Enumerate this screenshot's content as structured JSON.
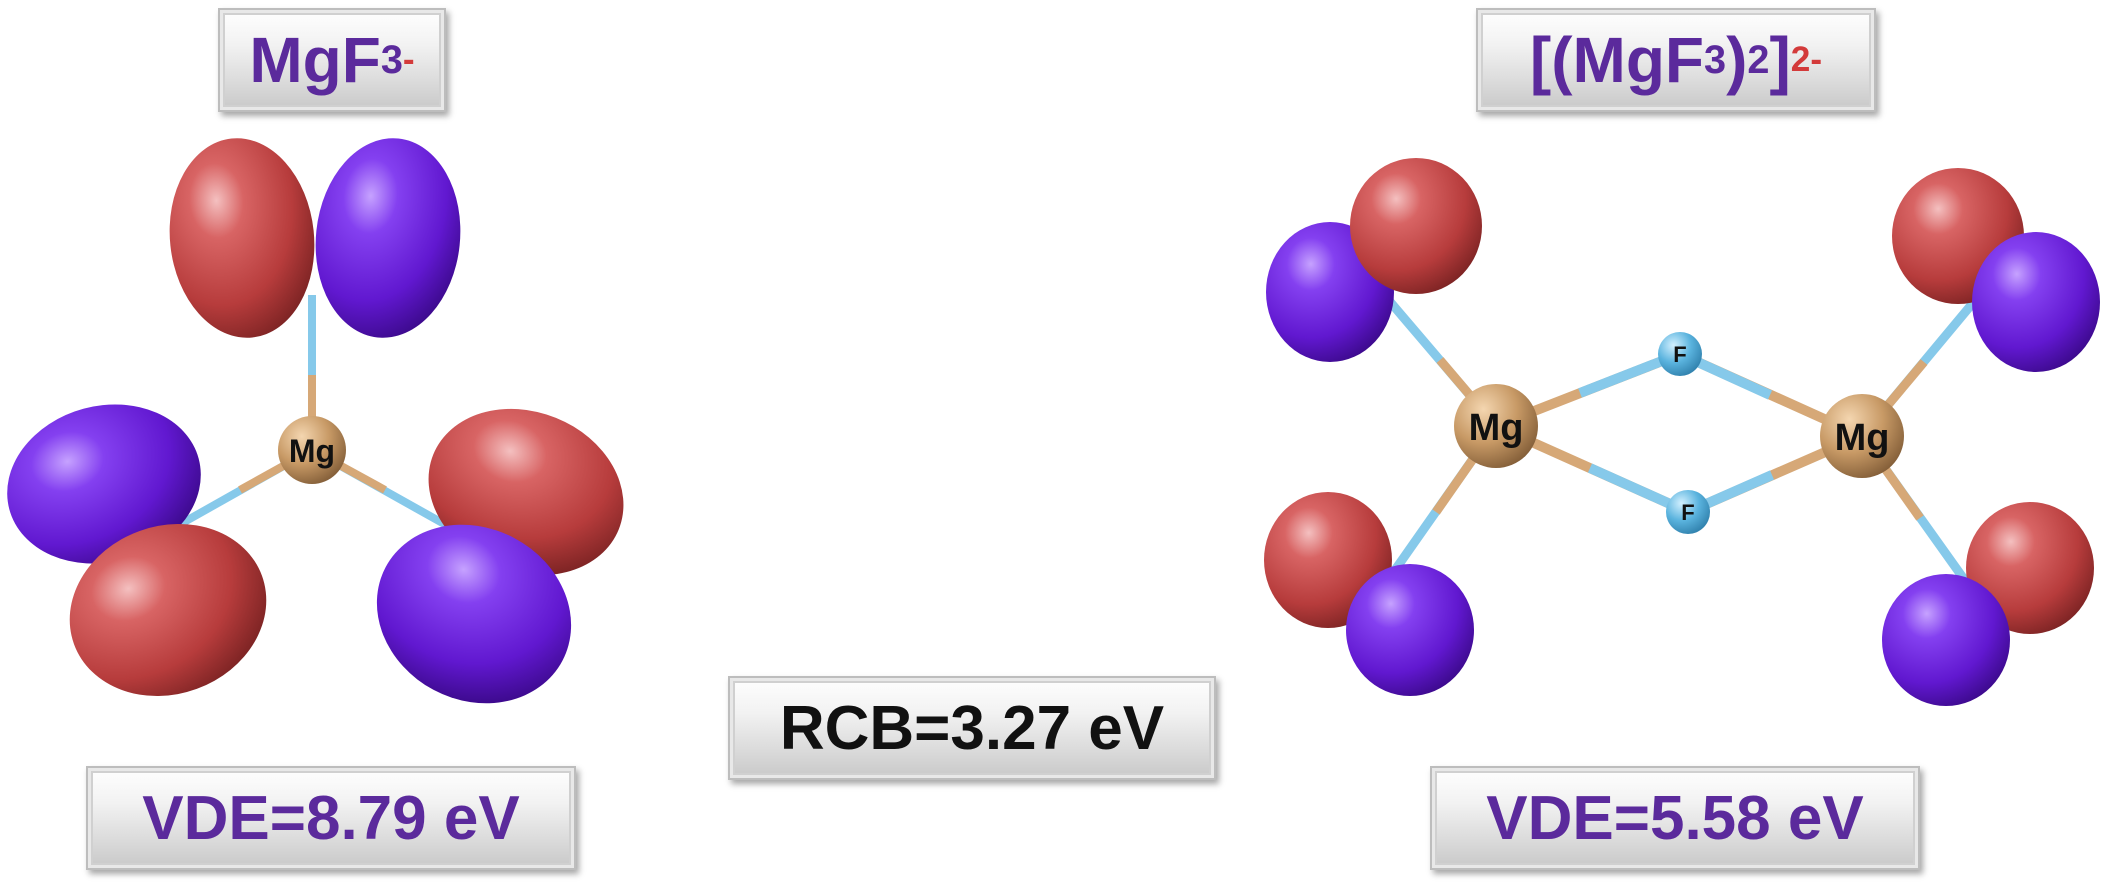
{
  "left": {
    "title": {
      "base": "MgF",
      "sub": "3",
      "sup": "-"
    },
    "vde_label": "VDE=8.79 eV",
    "center_atom": "Mg"
  },
  "right": {
    "title": {
      "open": "[(MgF",
      "sub1": "3",
      "close": ")",
      "sub2": "2",
      "bracket": "]",
      "sup": "2-"
    },
    "vde_label": "VDE=5.58 eV",
    "metal_atom_left": "Mg",
    "metal_atom_right": "Mg",
    "bridge_atom_top": "F",
    "bridge_atom_bottom": "F"
  },
  "center": {
    "rcb_label": "RCB=3.27 eV"
  },
  "colors": {
    "lobe_red": "#c24848",
    "lobe_purple": "#6a1fd6",
    "mg_atom": "#c89a66",
    "f_atom": "#5ab3de",
    "bond_orange": "#d6a877",
    "bond_blue": "#86c9ea",
    "label_purple": "#5b2a9c",
    "label_red": "#d33a3a"
  }
}
